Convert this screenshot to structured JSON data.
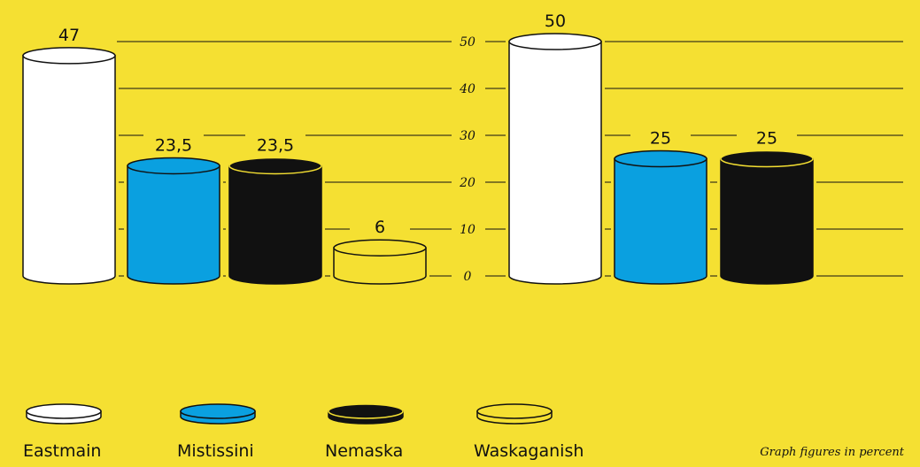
{
  "note": "Graph figures in percent",
  "colors": {
    "background": "#f5e032",
    "Eastmain": "#ffffff",
    "Mistissini": "#0aa0e0",
    "Nemaska": "#111111",
    "Waskaganish": "#f5e032",
    "outline": "#111111"
  },
  "legend": [
    {
      "name": "Eastmain",
      "color": "#ffffff"
    },
    {
      "name": "Mistissini",
      "color": "#0aa0e0"
    },
    {
      "name": "Nemaska",
      "color": "#111111"
    },
    {
      "name": "Waskaganish",
      "color": "#f5e032"
    }
  ],
  "chart_data": [
    {
      "type": "bar",
      "style": "cylinder",
      "categories": [
        "Eastmain",
        "Mistissini",
        "Nemaska",
        "Waskaganish"
      ],
      "values": [
        47,
        23.5,
        23.5,
        6
      ],
      "value_labels": [
        "47",
        "23,5",
        "23,5",
        "6"
      ],
      "ylim": [
        0,
        50
      ],
      "yticks": [
        0,
        10,
        20,
        30,
        40,
        50
      ],
      "grid": true
    },
    {
      "type": "bar",
      "style": "cylinder",
      "categories": [
        "Eastmain",
        "Mistissini",
        "Nemaska"
      ],
      "values": [
        50,
        25,
        25
      ],
      "value_labels": [
        "50",
        "25",
        "25"
      ],
      "ylim": [
        0,
        50
      ],
      "yticks": [
        0,
        10,
        20,
        30,
        40,
        50
      ],
      "grid": true
    }
  ]
}
